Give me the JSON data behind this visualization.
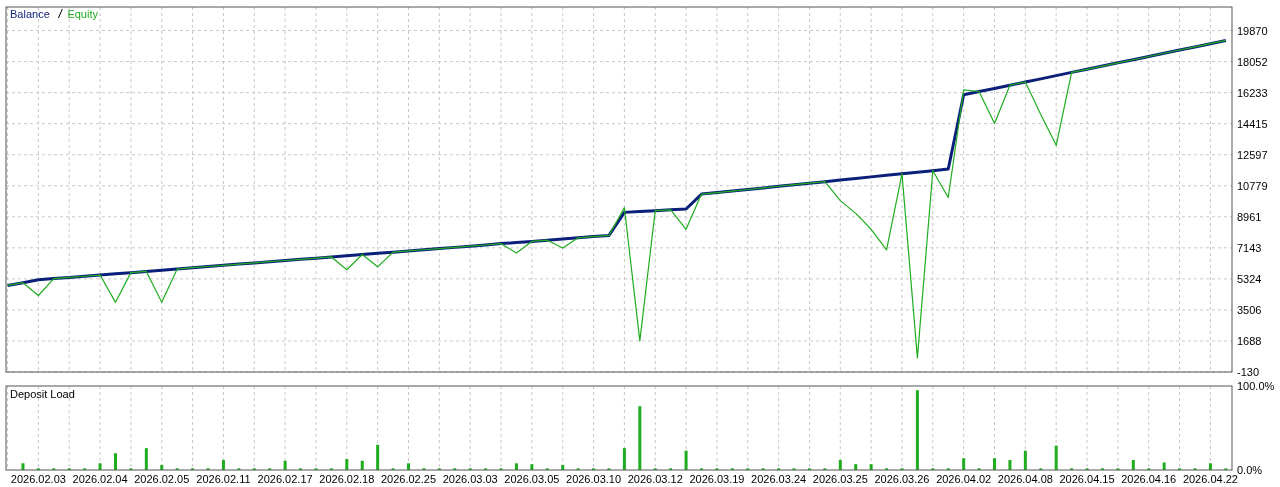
{
  "chart_data": [
    {
      "type": "line",
      "legend": "top left",
      "grid": true,
      "tick_labels": "y",
      "ylim": [
        -130,
        21250
      ],
      "yticks": [
        -130,
        1688,
        3506,
        5324,
        7143,
        8961,
        10779,
        12597,
        14415,
        16233,
        18052,
        19870
      ],
      "categories": [
        null,
        null,
        "2026.02.03",
        null,
        null,
        null,
        "2026.02.04",
        null,
        null,
        null,
        "2026.02.05",
        null,
        null,
        null,
        "2026.02.11",
        null,
        null,
        null,
        "2026.02.17",
        null,
        null,
        null,
        "2026.02.18",
        null,
        null,
        null,
        "2026.02.25",
        null,
        null,
        null,
        "2026.03.03",
        null,
        null,
        null,
        "2026.03.05",
        null,
        null,
        null,
        "2026.03.10",
        null,
        null,
        null,
        "2026.03.12",
        null,
        null,
        null,
        "2026.03.19",
        null,
        null,
        null,
        "2026.03.24",
        null,
        null,
        null,
        "2026.03.25",
        null,
        null,
        null,
        "2026.03.26",
        null,
        null,
        null,
        "2026.04.02",
        null,
        null,
        null,
        "2026.04.08",
        null,
        null,
        null,
        "2026.04.15",
        null,
        null,
        null,
        "2026.04.16",
        null,
        null,
        null,
        "2026.04.22",
        null
      ],
      "series": [
        {
          "name": "Equity",
          "color": "#1fad1f",
          "values": [
            4940,
            5100,
            4350,
            5340,
            5410,
            5480,
            5550,
            3950,
            5690,
            5760,
            3950,
            5900,
            5980,
            6050,
            6120,
            6190,
            6260,
            6330,
            6400,
            6470,
            6540,
            6610,
            5860,
            6750,
            6030,
            6890,
            6960,
            7030,
            7100,
            7170,
            7240,
            7310,
            7390,
            6840,
            7520,
            7590,
            7130,
            7730,
            7800,
            7870,
            9500,
            1690,
            9320,
            9370,
            8230,
            10290,
            10380,
            10470,
            10560,
            10650,
            10750,
            10840,
            10930,
            11020,
            9910,
            9160,
            8230,
            7020,
            11480,
            700,
            11660,
            10090,
            16400,
            16300,
            14430,
            16670,
            16860,
            14950,
            13150,
            17420,
            17600,
            17790,
            17980,
            18160,
            18350,
            18540,
            18730,
            18910,
            19100,
            19290
          ]
        },
        {
          "name": "Balance",
          "color": "#0a1f7a",
          "values": [
            4940,
            5100,
            5270,
            5340,
            5410,
            5480,
            5550,
            5620,
            5690,
            5760,
            5830,
            5900,
            5980,
            6050,
            6120,
            6190,
            6260,
            6330,
            6400,
            6470,
            6540,
            6610,
            6680,
            6750,
            6820,
            6890,
            6960,
            7030,
            7100,
            7170,
            7240,
            7310,
            7390,
            7450,
            7520,
            7590,
            7660,
            7730,
            7800,
            7870,
            9220,
            9270,
            9320,
            9370,
            9420,
            10290,
            10380,
            10470,
            10560,
            10650,
            10750,
            10840,
            10930,
            11020,
            11110,
            11200,
            11300,
            11390,
            11480,
            11570,
            11660,
            11760,
            16110,
            16300,
            16480,
            16670,
            16860,
            17040,
            17230,
            17420,
            17600,
            17790,
            17980,
            18160,
            18350,
            18540,
            18730,
            18910,
            19100,
            19290
          ]
        }
      ]
    },
    {
      "type": "bar",
      "title": "Deposit Load",
      "grid": "x",
      "ylim": [
        0,
        100
      ],
      "yticks": [
        {
          "value": 0,
          "label": "0.0%"
        },
        {
          "value": 100,
          "label": "100.0%"
        }
      ],
      "categories": [
        null,
        null,
        "2026.02.03",
        null,
        null,
        null,
        "2026.02.04",
        null,
        null,
        null,
        "2026.02.05",
        null,
        null,
        null,
        "2026.02.11",
        null,
        null,
        null,
        "2026.02.17",
        null,
        null,
        null,
        "2026.02.18",
        null,
        null,
        null,
        "2026.02.25",
        null,
        null,
        null,
        "2026.03.03",
        null,
        null,
        null,
        "2026.03.05",
        null,
        null,
        null,
        "2026.03.10",
        null,
        null,
        null,
        "2026.03.12",
        null,
        null,
        null,
        "2026.03.19",
        null,
        null,
        null,
        "2026.03.24",
        null,
        null,
        null,
        "2026.03.25",
        null,
        null,
        null,
        "2026.03.26",
        null,
        null,
        null,
        "2026.04.02",
        null,
        null,
        null,
        "2026.04.08",
        null,
        null,
        null,
        "2026.04.15",
        null,
        null,
        null,
        "2026.04.16",
        null,
        null,
        null,
        "2026.04.22",
        null
      ],
      "series": [
        {
          "color": "#1fad1f",
          "values": [
            null,
            8,
            2,
            2,
            2,
            2,
            8,
            20,
            2,
            26,
            6,
            2,
            2,
            2,
            12,
            2,
            2,
            2,
            11,
            2,
            2,
            2,
            13,
            11,
            30,
            2,
            8,
            2,
            2,
            2,
            2,
            2,
            2,
            8,
            7,
            2,
            6,
            2,
            2,
            2,
            26,
            76,
            2,
            2,
            23,
            2,
            2,
            2,
            2,
            2,
            2,
            2,
            2,
            2,
            12,
            7,
            7,
            2,
            2,
            95,
            2,
            2,
            14,
            2,
            14,
            12,
            23,
            2,
            29,
            2,
            2,
            2,
            2,
            12,
            2,
            9,
            2,
            2,
            8,
            2
          ]
        }
      ]
    }
  ]
}
